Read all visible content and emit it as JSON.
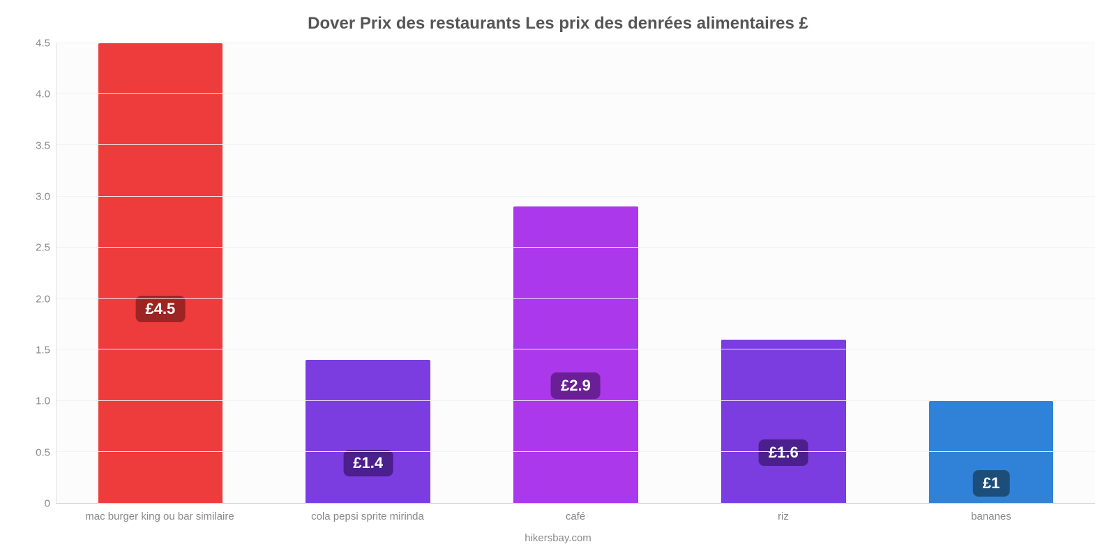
{
  "chart": {
    "type": "bar",
    "title": "Dover Prix des restaurants Les prix des denrées alimentaires £",
    "title_color": "#555555",
    "title_fontsize": 24,
    "source": "hikersbay.com",
    "background_color": "#ffffff",
    "plot_background": "#fcfcfc",
    "grid_color": "#f2f2f2",
    "axis_color": "#e0e0e0",
    "axis_label_color": "#888888",
    "axis_label_fontsize": 15,
    "ymin": 0,
    "ymax": 4.5,
    "ytick_step": 0.5,
    "yticks": [
      "0",
      "0.5",
      "1.0",
      "1.5",
      "2.0",
      "2.5",
      "3.0",
      "3.5",
      "4.0",
      "4.5"
    ],
    "bar_width_pct": 60,
    "value_label_fontsize": 22,
    "value_label_color": "#ffffff",
    "categories": [
      "mac burger king ou bar similaire",
      "cola pepsi sprite mirinda",
      "café",
      "riz",
      "bananes"
    ],
    "values": [
      4.5,
      1.4,
      2.9,
      1.6,
      1.0
    ],
    "value_labels": [
      "£4.5",
      "£1.4",
      "£2.9",
      "£1.6",
      "£1"
    ],
    "bar_colors": [
      "#ee3c3c",
      "#7b3ce0",
      "#ab38ea",
      "#7b3ce0",
      "#3082d8"
    ],
    "badge_colors": [
      "#9e2424",
      "#4b1f8c",
      "#6a1f96",
      "#4b1f8c",
      "#1d4e7a"
    ],
    "badge_vpos_pct": [
      55,
      63,
      56,
      61,
      68
    ]
  }
}
